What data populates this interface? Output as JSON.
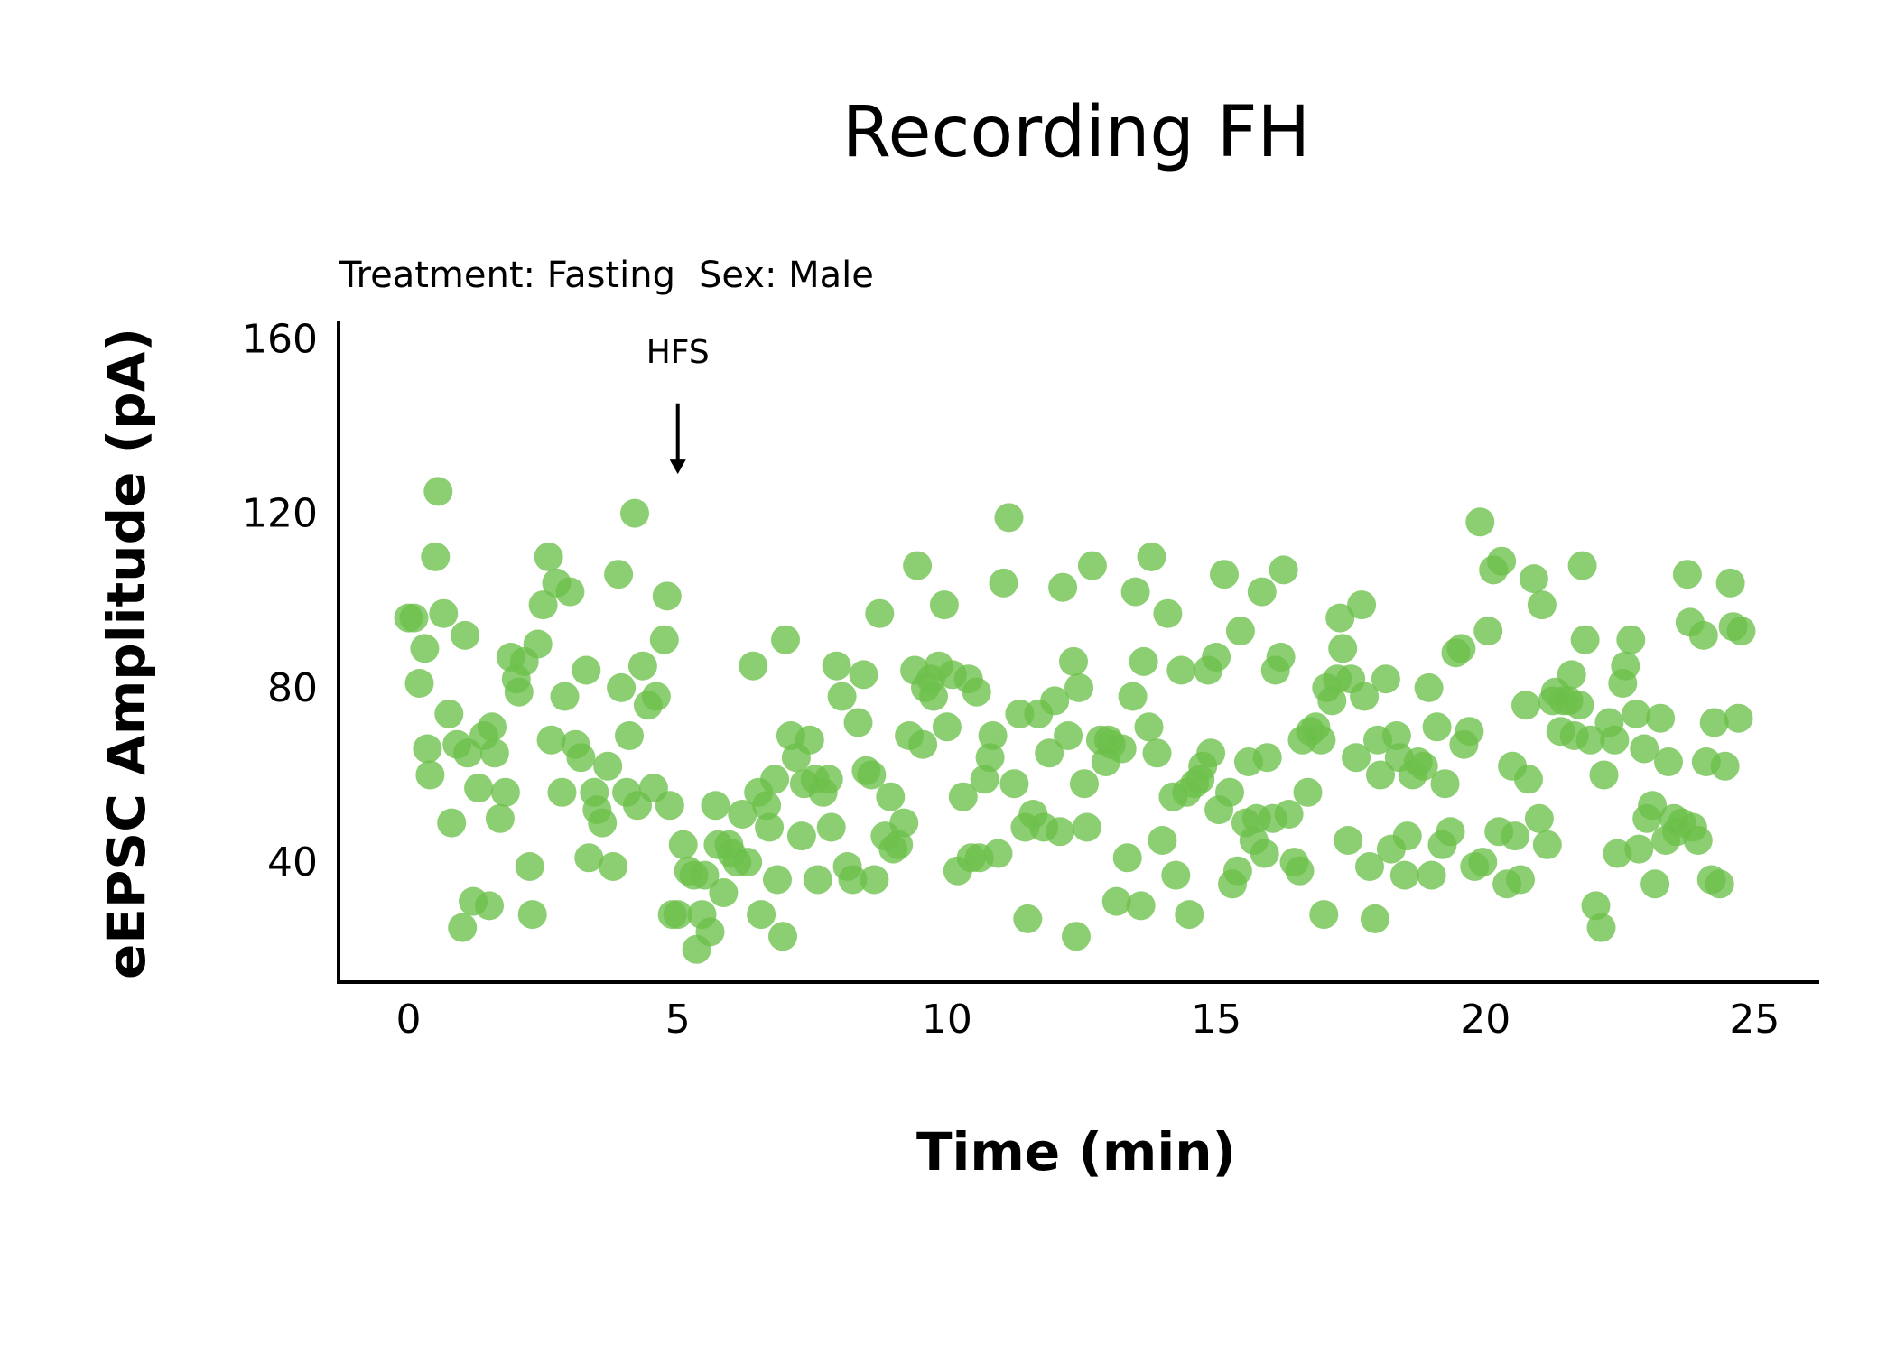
{
  "chart_data": {
    "type": "scatter",
    "title": "Recording FH",
    "subtitle": {
      "treatment": "Treatment: Fasting",
      "sex": "Sex: Male"
    },
    "xlabel": "Time (min)",
    "ylabel": "eEPSC Amplitude (pA)",
    "xlim": [
      -1.3,
      26.2
    ],
    "ylim": [
      12.5,
      164
    ],
    "xticks": [
      0,
      5,
      10,
      15,
      20,
      25
    ],
    "yticks": [
      40,
      80,
      120,
      160
    ],
    "grid": false,
    "legend": "none",
    "annotation": {
      "label": "HFS",
      "x": 5,
      "arrow_from_y": 145,
      "arrow_to_y": 129
    },
    "marker_color": "#6cc04a",
    "marker_opacity": 0.78,
    "series": [
      {
        "points": [
          [
            0.0,
            96
          ],
          [
            0.1,
            96
          ],
          [
            0.2,
            81
          ],
          [
            0.3,
            89
          ],
          [
            0.35,
            66
          ],
          [
            0.4,
            60
          ],
          [
            0.5,
            110
          ],
          [
            0.55,
            125
          ],
          [
            0.65,
            97
          ],
          [
            0.75,
            74
          ],
          [
            0.8,
            49
          ],
          [
            0.9,
            67
          ],
          [
            1.0,
            25
          ],
          [
            1.05,
            92
          ],
          [
            1.1,
            65
          ],
          [
            1.2,
            31
          ],
          [
            1.3,
            57
          ],
          [
            1.4,
            69
          ],
          [
            1.5,
            30
          ],
          [
            1.55,
            71
          ],
          [
            1.6,
            65
          ],
          [
            1.7,
            50
          ],
          [
            1.8,
            56
          ],
          [
            1.9,
            87
          ],
          [
            2.0,
            82
          ],
          [
            2.05,
            79
          ],
          [
            2.15,
            86
          ],
          [
            2.25,
            39
          ],
          [
            2.3,
            28
          ],
          [
            2.4,
            90
          ],
          [
            2.5,
            99
          ],
          [
            2.6,
            110
          ],
          [
            2.65,
            68
          ],
          [
            2.75,
            104
          ],
          [
            2.85,
            56
          ],
          [
            2.9,
            78
          ],
          [
            3.0,
            102
          ],
          [
            3.1,
            67
          ],
          [
            3.2,
            64
          ],
          [
            3.3,
            84
          ],
          [
            3.35,
            41
          ],
          [
            3.45,
            56
          ],
          [
            3.5,
            52
          ],
          [
            3.6,
            49
          ],
          [
            3.7,
            62
          ],
          [
            3.8,
            39
          ],
          [
            3.9,
            106
          ],
          [
            3.95,
            80
          ],
          [
            4.05,
            56
          ],
          [
            4.1,
            69
          ],
          [
            4.2,
            120
          ],
          [
            4.25,
            53
          ],
          [
            4.35,
            85
          ],
          [
            4.45,
            76
          ],
          [
            4.55,
            57
          ],
          [
            4.6,
            78
          ],
          [
            4.75,
            91
          ],
          [
            4.8,
            101
          ],
          [
            4.85,
            53
          ],
          [
            4.9,
            28
          ],
          [
            5.0,
            28
          ],
          [
            5.1,
            44
          ],
          [
            5.2,
            38
          ],
          [
            5.3,
            37
          ],
          [
            5.35,
            20
          ],
          [
            5.45,
            28
          ],
          [
            5.5,
            37
          ],
          [
            5.6,
            24
          ],
          [
            5.7,
            53
          ],
          [
            5.75,
            44
          ],
          [
            5.85,
            33
          ],
          [
            5.95,
            44
          ],
          [
            6.0,
            42
          ],
          [
            6.1,
            40
          ],
          [
            6.2,
            51
          ],
          [
            6.3,
            40
          ],
          [
            6.4,
            85
          ],
          [
            6.5,
            56
          ],
          [
            6.55,
            28
          ],
          [
            6.65,
            53
          ],
          [
            6.7,
            48
          ],
          [
            6.8,
            59
          ],
          [
            6.85,
            36
          ],
          [
            6.95,
            23
          ],
          [
            7.0,
            91
          ],
          [
            7.1,
            69
          ],
          [
            7.2,
            64
          ],
          [
            7.3,
            46
          ],
          [
            7.35,
            58
          ],
          [
            7.45,
            68
          ],
          [
            7.55,
            59
          ],
          [
            7.6,
            36
          ],
          [
            7.7,
            56
          ],
          [
            7.8,
            59
          ],
          [
            7.85,
            48
          ],
          [
            7.95,
            85
          ],
          [
            8.05,
            78
          ],
          [
            8.15,
            39
          ],
          [
            8.25,
            36
          ],
          [
            8.35,
            72
          ],
          [
            8.45,
            83
          ],
          [
            8.5,
            61
          ],
          [
            8.6,
            60
          ],
          [
            8.65,
            36
          ],
          [
            8.75,
            97
          ],
          [
            8.85,
            46
          ],
          [
            8.95,
            55
          ],
          [
            9.0,
            43
          ],
          [
            9.1,
            44
          ],
          [
            9.2,
            49
          ],
          [
            9.3,
            69
          ],
          [
            9.4,
            84
          ],
          [
            9.45,
            108
          ],
          [
            9.55,
            67
          ],
          [
            9.6,
            80
          ],
          [
            9.7,
            82
          ],
          [
            9.75,
            78
          ],
          [
            9.85,
            85
          ],
          [
            9.95,
            99
          ],
          [
            10.0,
            71
          ],
          [
            10.1,
            83
          ],
          [
            10.2,
            38
          ],
          [
            10.3,
            55
          ],
          [
            10.4,
            82
          ],
          [
            10.45,
            41
          ],
          [
            10.55,
            79
          ],
          [
            10.6,
            41
          ],
          [
            10.7,
            59
          ],
          [
            10.8,
            64
          ],
          [
            10.85,
            69
          ],
          [
            10.95,
            42
          ],
          [
            11.05,
            104
          ],
          [
            11.15,
            119
          ],
          [
            11.25,
            58
          ],
          [
            11.35,
            74
          ],
          [
            11.45,
            48
          ],
          [
            11.5,
            27
          ],
          [
            11.6,
            51
          ],
          [
            11.7,
            74
          ],
          [
            11.8,
            48
          ],
          [
            11.9,
            65
          ],
          [
            12.0,
            77
          ],
          [
            12.1,
            47
          ],
          [
            12.15,
            103
          ],
          [
            12.25,
            69
          ],
          [
            12.35,
            86
          ],
          [
            12.4,
            23
          ],
          [
            12.45,
            80
          ],
          [
            12.55,
            58
          ],
          [
            12.6,
            48
          ],
          [
            12.7,
            108
          ],
          [
            12.85,
            68
          ],
          [
            12.95,
            63
          ],
          [
            13.0,
            68
          ],
          [
            13.05,
            67
          ],
          [
            13.15,
            31
          ],
          [
            13.25,
            66
          ],
          [
            13.35,
            41
          ],
          [
            13.45,
            78
          ],
          [
            13.5,
            102
          ],
          [
            13.6,
            30
          ],
          [
            13.65,
            86
          ],
          [
            13.75,
            71
          ],
          [
            13.8,
            110
          ],
          [
            13.9,
            65
          ],
          [
            14.0,
            45
          ],
          [
            14.1,
            97
          ],
          [
            14.2,
            55
          ],
          [
            14.25,
            37
          ],
          [
            14.35,
            84
          ],
          [
            14.45,
            56
          ],
          [
            14.5,
            28
          ],
          [
            14.6,
            58
          ],
          [
            14.7,
            59
          ],
          [
            14.75,
            62
          ],
          [
            14.85,
            84
          ],
          [
            14.9,
            65
          ],
          [
            15.0,
            87
          ],
          [
            15.05,
            52
          ],
          [
            15.15,
            106
          ],
          [
            15.25,
            56
          ],
          [
            15.3,
            35
          ],
          [
            15.4,
            38
          ],
          [
            15.45,
            93
          ],
          [
            15.55,
            49
          ],
          [
            15.6,
            63
          ],
          [
            15.7,
            45
          ],
          [
            15.75,
            50
          ],
          [
            15.85,
            102
          ],
          [
            15.9,
            42
          ],
          [
            15.95,
            64
          ],
          [
            16.05,
            50
          ],
          [
            16.1,
            84
          ],
          [
            16.2,
            87
          ],
          [
            16.25,
            107
          ],
          [
            16.35,
            51
          ],
          [
            16.45,
            40
          ],
          [
            16.55,
            38
          ],
          [
            16.6,
            68
          ],
          [
            16.7,
            56
          ],
          [
            16.75,
            70
          ],
          [
            16.85,
            71
          ],
          [
            16.95,
            68
          ],
          [
            17.0,
            28
          ],
          [
            17.05,
            80
          ],
          [
            17.15,
            77
          ],
          [
            17.25,
            82
          ],
          [
            17.3,
            96
          ],
          [
            17.35,
            89
          ],
          [
            17.45,
            45
          ],
          [
            17.5,
            82
          ],
          [
            17.6,
            64
          ],
          [
            17.7,
            99
          ],
          [
            17.75,
            78
          ],
          [
            17.85,
            39
          ],
          [
            17.95,
            27
          ],
          [
            18.0,
            68
          ],
          [
            18.05,
            60
          ],
          [
            18.15,
            82
          ],
          [
            18.25,
            43
          ],
          [
            18.35,
            69
          ],
          [
            18.4,
            64
          ],
          [
            18.5,
            37
          ],
          [
            18.55,
            46
          ],
          [
            18.65,
            60
          ],
          [
            18.75,
            63
          ],
          [
            18.85,
            62
          ],
          [
            18.95,
            80
          ],
          [
            19.0,
            37
          ],
          [
            19.1,
            71
          ],
          [
            19.2,
            44
          ],
          [
            19.25,
            58
          ],
          [
            19.35,
            47
          ],
          [
            19.45,
            88
          ],
          [
            19.55,
            89
          ],
          [
            19.6,
            67
          ],
          [
            19.7,
            70
          ],
          [
            19.8,
            39
          ],
          [
            19.9,
            118
          ],
          [
            19.95,
            40
          ],
          [
            20.05,
            93
          ],
          [
            20.15,
            107
          ],
          [
            20.25,
            47
          ],
          [
            20.3,
            109
          ],
          [
            20.4,
            35
          ],
          [
            20.5,
            62
          ],
          [
            20.55,
            46
          ],
          [
            20.65,
            36
          ],
          [
            20.75,
            76
          ],
          [
            20.8,
            59
          ],
          [
            20.9,
            105
          ],
          [
            21.0,
            50
          ],
          [
            21.05,
            99
          ],
          [
            21.15,
            44
          ],
          [
            21.25,
            77
          ],
          [
            21.3,
            79
          ],
          [
            21.4,
            70
          ],
          [
            21.45,
            77
          ],
          [
            21.55,
            77
          ],
          [
            21.6,
            83
          ],
          [
            21.65,
            69
          ],
          [
            21.75,
            76
          ],
          [
            21.8,
            108
          ],
          [
            21.85,
            91
          ],
          [
            21.95,
            68
          ],
          [
            22.05,
            30
          ],
          [
            22.15,
            25
          ],
          [
            22.2,
            60
          ],
          [
            22.3,
            72
          ],
          [
            22.4,
            68
          ],
          [
            22.45,
            42
          ],
          [
            22.55,
            81
          ],
          [
            22.6,
            85
          ],
          [
            22.7,
            91
          ],
          [
            22.8,
            74
          ],
          [
            22.85,
            43
          ],
          [
            22.95,
            66
          ],
          [
            23.0,
            50
          ],
          [
            23.1,
            53
          ],
          [
            23.15,
            35
          ],
          [
            23.25,
            73
          ],
          [
            23.35,
            45
          ],
          [
            23.4,
            63
          ],
          [
            23.5,
            50
          ],
          [
            23.55,
            47
          ],
          [
            23.65,
            49
          ],
          [
            23.75,
            106
          ],
          [
            23.8,
            95
          ],
          [
            23.85,
            48
          ],
          [
            23.95,
            45
          ],
          [
            24.05,
            92
          ],
          [
            24.1,
            63
          ],
          [
            24.2,
            36
          ],
          [
            24.25,
            72
          ],
          [
            24.35,
            35
          ],
          [
            24.45,
            62
          ],
          [
            24.55,
            104
          ],
          [
            24.6,
            94
          ],
          [
            24.7,
            73
          ],
          [
            24.75,
            93
          ]
        ]
      }
    ]
  }
}
